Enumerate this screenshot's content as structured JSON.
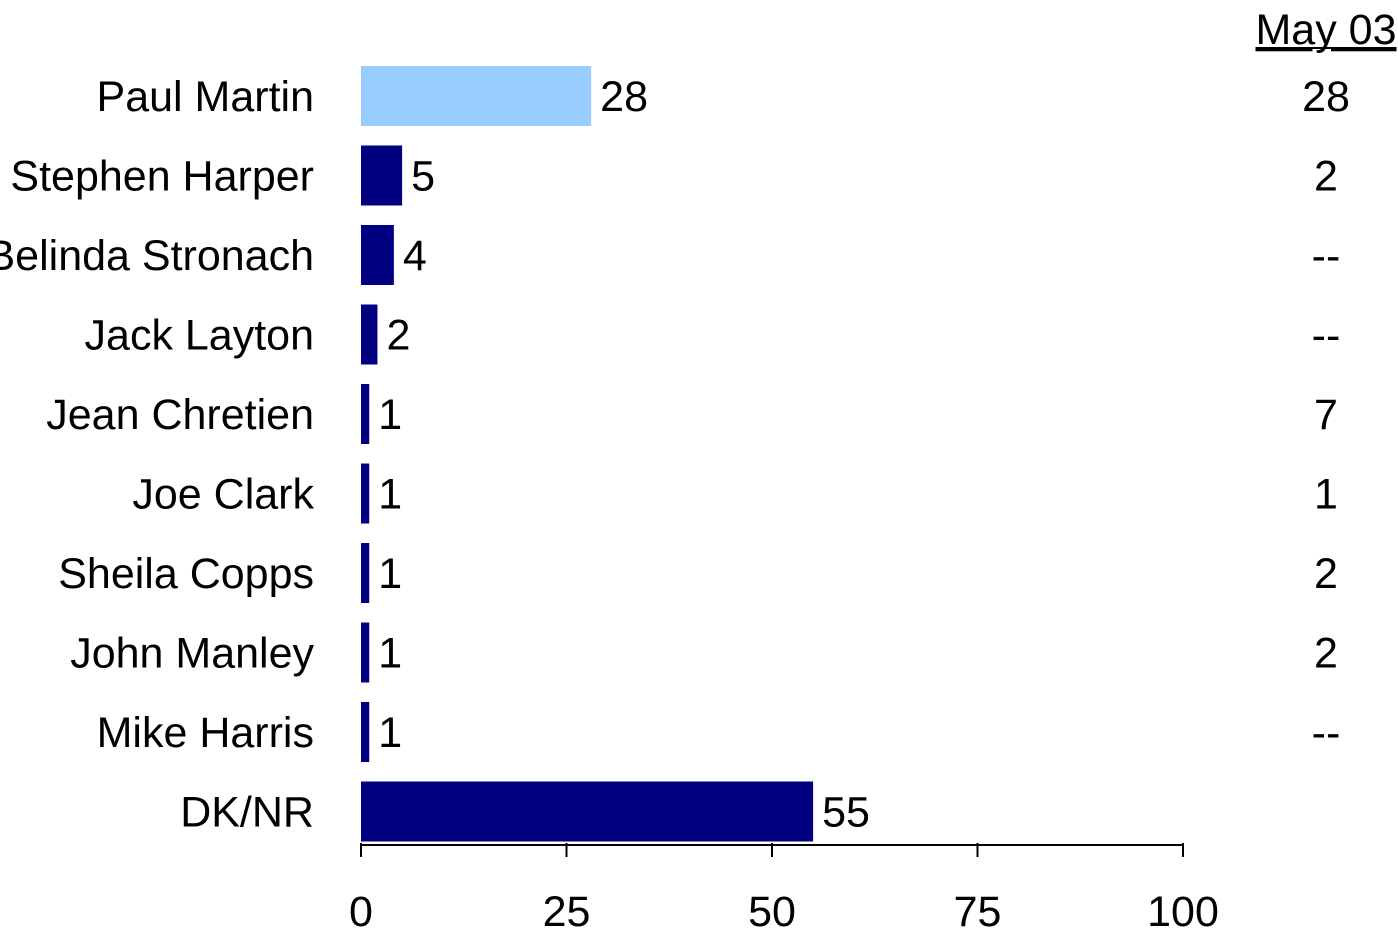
{
  "chart_data": {
    "type": "bar",
    "orientation": "horizontal",
    "categories": [
      "Paul Martin",
      "Stephen Harper",
      "Belinda Stronach",
      "Jack Layton",
      "Jean Chretien",
      "Joe Clark",
      "Sheila Copps",
      "John Manley",
      "Mike Harris",
      "DK/NR"
    ],
    "values": [
      28,
      5,
      4,
      2,
      1,
      1,
      1,
      1,
      1,
      55
    ],
    "highlight_index": 0,
    "xlim": [
      0,
      100
    ],
    "xticks": [
      0,
      25,
      50,
      75,
      100
    ],
    "grid": false,
    "comparison_column": {
      "header": "May 03",
      "values": [
        "28",
        "2",
        "--",
        "--",
        "7",
        "1",
        "2",
        "2",
        "--",
        ""
      ]
    }
  },
  "colors": {
    "bar": "#000080",
    "highlight_bar": "#99ccff",
    "axis": "#000000",
    "text": "#000000"
  }
}
